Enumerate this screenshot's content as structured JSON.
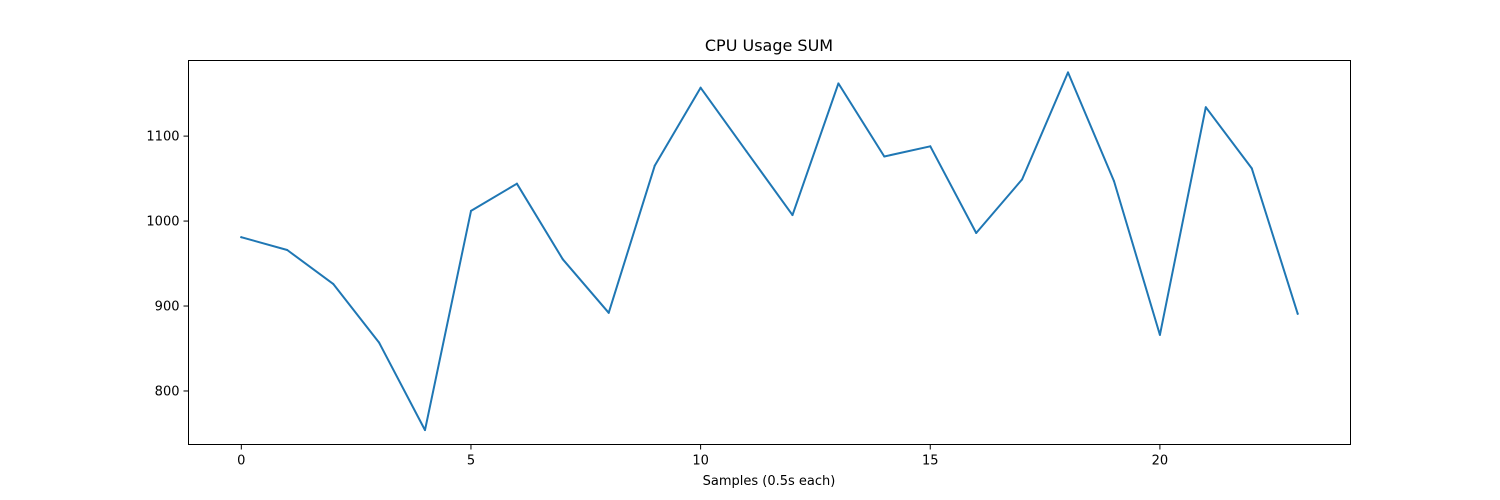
{
  "chart_data": {
    "type": "line",
    "title": "CPU Usage SUM",
    "xlabel": "Samples (0.5s each)",
    "ylabel": "",
    "grid": false,
    "xlim": [
      -1.15,
      24.15
    ],
    "ylim": [
      737,
      1189
    ],
    "xticks": [
      0,
      5,
      10,
      15,
      20
    ],
    "yticks": [
      800,
      900,
      1000,
      1100
    ],
    "color": "#1f77b4",
    "x": [
      0,
      1,
      2,
      3,
      4,
      5,
      6,
      7,
      8,
      9,
      10,
      11,
      12,
      13,
      14,
      15,
      16,
      17,
      18,
      19,
      20,
      21,
      22,
      23
    ],
    "values": [
      981,
      966,
      926,
      857,
      754,
      1012,
      1044,
      955,
      892,
      1065,
      1157,
      1082,
      1007,
      1162,
      1076,
      1088,
      986,
      1049,
      1175,
      1047,
      866,
      1134,
      1062,
      891
    ]
  }
}
